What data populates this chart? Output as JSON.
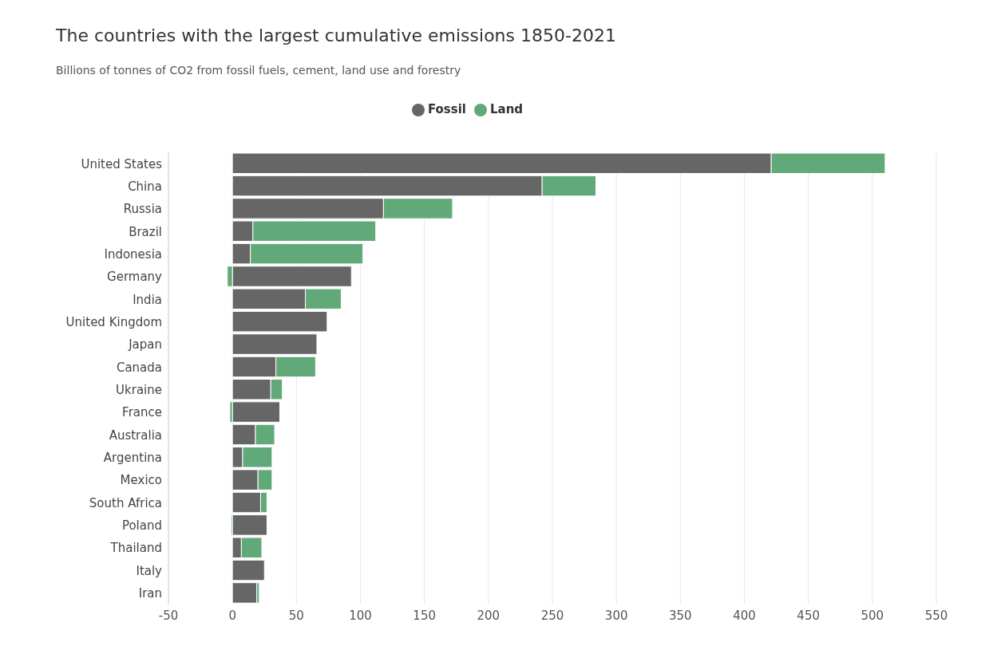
{
  "chart_data": {
    "type": "bar",
    "orientation": "horizontal",
    "stacked": true,
    "title": "The countries with the largest cumulative emissions 1850-2021",
    "subtitle": "Billions of tonnes of CO2 from fossil fuels, cement, land use and forestry",
    "categories": [
      "United States",
      "China",
      "Russia",
      "Brazil",
      "Indonesia",
      "Germany",
      "India",
      "United Kingdom",
      "Japan",
      "Canada",
      "Ukraine",
      "France",
      "Australia",
      "Argentina",
      "Mexico",
      "South Africa",
      "Poland",
      "Thailand",
      "Italy",
      "Iran"
    ],
    "series": [
      {
        "name": "Fossil",
        "color": "#666666",
        "values": [
          421,
          242,
          118,
          16,
          14,
          93,
          57,
          74,
          66,
          34,
          30,
          37,
          18,
          8,
          20,
          22,
          27,
          7,
          25,
          19
        ]
      },
      {
        "name": "Land",
        "color": "#62a97a",
        "values": [
          89,
          42,
          54,
          96,
          88,
          -4,
          28,
          null,
          null,
          31,
          9,
          -2,
          15,
          23,
          11,
          5,
          -1,
          16,
          null,
          2
        ]
      }
    ],
    "xlim": [
      -50,
      550
    ],
    "xticks": [
      -50,
      0,
      50,
      100,
      150,
      200,
      250,
      300,
      350,
      400,
      450,
      500,
      550
    ],
    "grid": "x",
    "legend": "top"
  }
}
